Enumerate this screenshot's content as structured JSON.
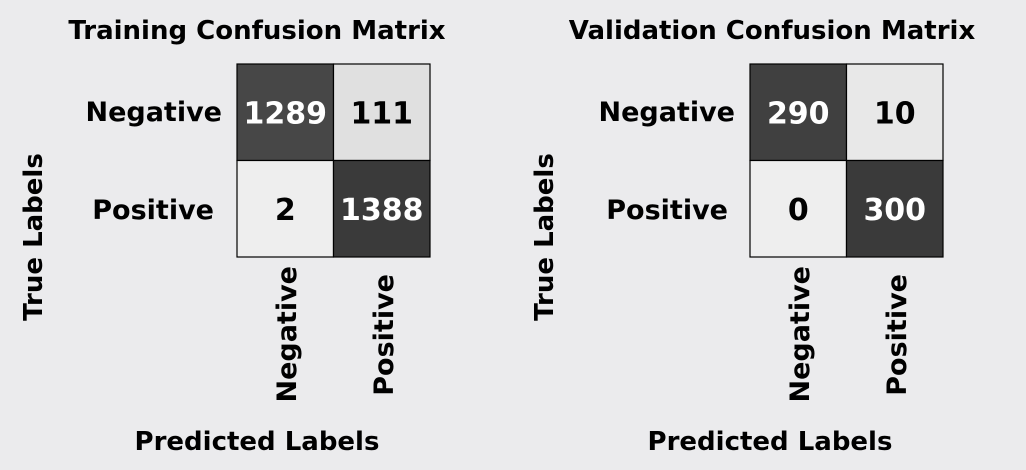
{
  "chart_data": [
    {
      "type": "heatmap",
      "title": "Training Confusion Matrix",
      "xlabel": "Predicted Labels",
      "ylabel": "True Labels",
      "x_categories": [
        "Negative",
        "Positive"
      ],
      "y_categories": [
        "Negative",
        "Positive"
      ],
      "values": [
        [
          1289,
          111
        ],
        [
          2,
          1388
        ]
      ],
      "colorscale": "greys",
      "colorbar": false
    },
    {
      "type": "heatmap",
      "title": "Validation Confusion Matrix",
      "xlabel": "Predicted Labels",
      "ylabel": "True Labels",
      "x_categories": [
        "Negative",
        "Positive"
      ],
      "y_categories": [
        "Negative",
        "Positive"
      ],
      "values": [
        [
          290,
          10
        ],
        [
          0,
          300
        ]
      ],
      "colorscale": "greys",
      "colorbar": false
    }
  ]
}
